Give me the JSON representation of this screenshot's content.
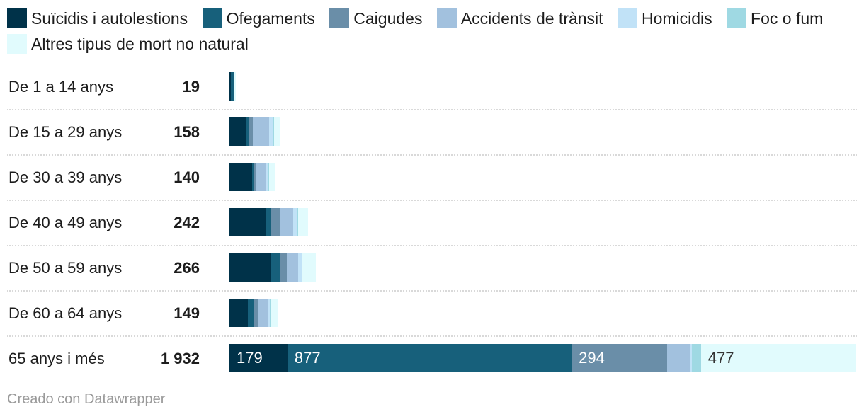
{
  "legend": [
    {
      "name": "Suïcidis i autolestions",
      "color": "#003249"
    },
    {
      "name": "Ofegaments",
      "color": "#17607b"
    },
    {
      "name": "Caigudes",
      "color": "#6a8ea8"
    },
    {
      "name": "Accidents de trànsit",
      "color": "#a2c1de"
    },
    {
      "name": "Homicidis",
      "color": "#c1e2f7"
    },
    {
      "name": "Foc o fum",
      "color": "#9fd9e3"
    },
    {
      "name": "Altres tipus de mort no natural",
      "color": "#e1fbfd"
    }
  ],
  "footer": "Creado con Datawrapper",
  "chart_data": {
    "type": "bar",
    "orientation": "horizontal",
    "stacked": true,
    "categories": [
      "De 1 a 14 anys",
      "De 15 a 29 anys",
      "De 30 a 39 anys",
      "De 40 a 49 anys",
      "De 50 a 59 anys",
      "De 60 a 64 anys",
      "65 anys i més"
    ],
    "totals": [
      "19",
      "158",
      "140",
      "242",
      "266",
      "149",
      "1 932"
    ],
    "xlim": [
      0,
      1932
    ],
    "series": [
      {
        "name": "Suïcidis i autolestions",
        "values": [
          4,
          50,
          70,
          112,
          130,
          56,
          179
        ]
      },
      {
        "name": "Ofegaments",
        "values": [
          10,
          8,
          4,
          18,
          26,
          20,
          877
        ]
      },
      {
        "name": "Caigudes",
        "values": [
          2,
          14,
          9,
          26,
          21,
          14,
          294
        ]
      },
      {
        "name": "Accidents de trànsit",
        "values": [
          0,
          50,
          30,
          40,
          34,
          30,
          70
        ]
      },
      {
        "name": "Homicidis",
        "values": [
          0,
          12,
          7,
          12,
          11,
          4,
          8
        ]
      },
      {
        "name": "Foc o fum",
        "values": [
          0,
          3,
          2,
          4,
          3,
          3,
          27
        ]
      },
      {
        "name": "Altres tipus de mort no natural",
        "values": [
          3,
          21,
          18,
          30,
          41,
          22,
          477
        ]
      }
    ],
    "data_labels": [
      [
        null,
        null,
        null,
        null,
        null,
        null,
        "179"
      ],
      [
        null,
        null,
        null,
        null,
        null,
        null,
        "877"
      ],
      [
        null,
        null,
        null,
        null,
        null,
        null,
        "294"
      ],
      [
        null,
        null,
        null,
        null,
        null,
        null,
        null
      ],
      [
        null,
        null,
        null,
        null,
        null,
        null,
        null
      ],
      [
        null,
        null,
        null,
        null,
        null,
        null,
        null
      ],
      [
        null,
        null,
        null,
        null,
        null,
        null,
        "477"
      ]
    ],
    "legend_position": "top",
    "grid": false
  }
}
